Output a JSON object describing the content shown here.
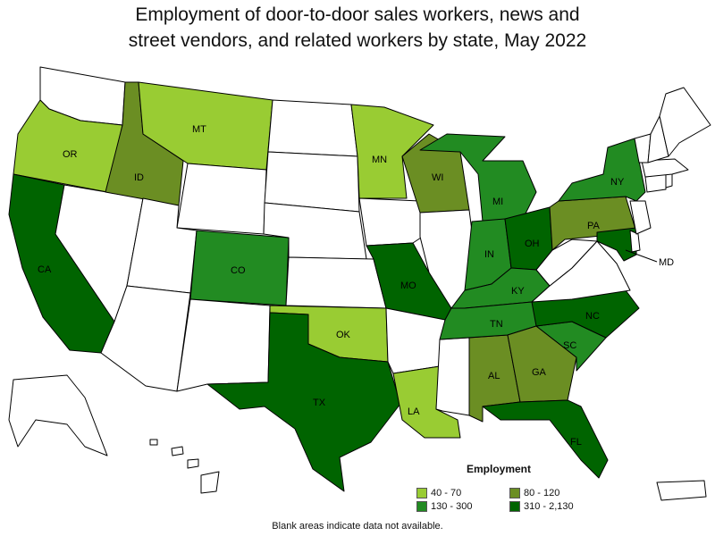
{
  "title_line1": "Employment of door-to-door sales workers, news and",
  "title_line2": "street vendors, and related workers by state, May 2022",
  "legend": {
    "title": "Employment",
    "bins": [
      {
        "label": "40 - 70",
        "color": "#99cc33"
      },
      {
        "label": "80 - 120",
        "color": "#6b8e23"
      },
      {
        "label": "130 - 300",
        "color": "#228b22"
      },
      {
        "label": "310 - 2,130",
        "color": "#006400"
      }
    ]
  },
  "note": "Blank areas indicate data not available.",
  "colors": {
    "no_data": "#ffffff",
    "border": "#000000"
  },
  "states": [
    {
      "abbr": "OR",
      "bin": 0
    },
    {
      "abbr": "MT",
      "bin": 0
    },
    {
      "abbr": "MN",
      "bin": 0
    },
    {
      "abbr": "OK",
      "bin": 0
    },
    {
      "abbr": "LA",
      "bin": 0
    },
    {
      "abbr": "ID",
      "bin": 1
    },
    {
      "abbr": "WI",
      "bin": 1
    },
    {
      "abbr": "PA",
      "bin": 1
    },
    {
      "abbr": "AL",
      "bin": 1
    },
    {
      "abbr": "GA",
      "bin": 1
    },
    {
      "abbr": "CO",
      "bin": 2
    },
    {
      "abbr": "MI",
      "bin": 2
    },
    {
      "abbr": "IN",
      "bin": 2
    },
    {
      "abbr": "KY",
      "bin": 2
    },
    {
      "abbr": "TN",
      "bin": 2
    },
    {
      "abbr": "SC",
      "bin": 2
    },
    {
      "abbr": "NY",
      "bin": 2
    },
    {
      "abbr": "CA",
      "bin": 3
    },
    {
      "abbr": "TX",
      "bin": 3
    },
    {
      "abbr": "MO",
      "bin": 3
    },
    {
      "abbr": "OH",
      "bin": 3
    },
    {
      "abbr": "NC",
      "bin": 3
    },
    {
      "abbr": "FL",
      "bin": 3
    },
    {
      "abbr": "MD",
      "bin": 3
    }
  ]
}
